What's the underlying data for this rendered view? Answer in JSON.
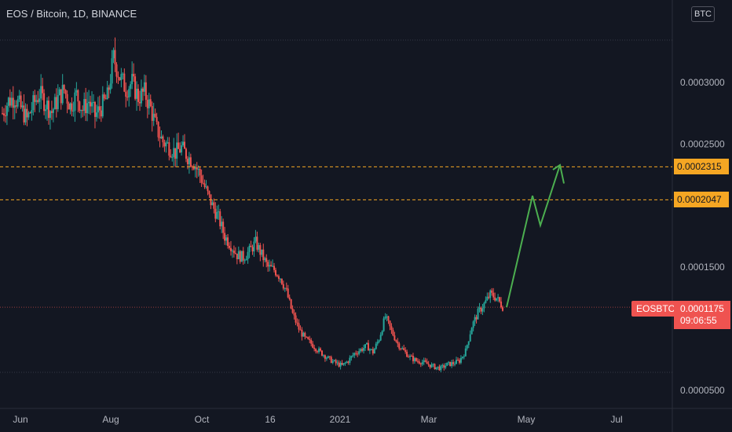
{
  "header": {
    "title": "EOS / Bitcoin, 1D, BINANCE",
    "currency_button": "BTC"
  },
  "chart_data": {
    "type": "candlestick",
    "title": "EOS / Bitcoin, 1D, BINANCE",
    "yaxis": {
      "ticks": [
        "0.0003000",
        "0.0002500",
        "0.0001500",
        "0.0000500"
      ],
      "tick_values": [
        0.0003,
        0.00025,
        0.00015,
        5e-05
      ],
      "range": [
        4e-05,
        0.00035
      ]
    },
    "xaxis": {
      "ticks": [
        "Jun",
        "Aug",
        "Oct",
        "16",
        "2021",
        "Mar",
        "May",
        "Jul"
      ]
    },
    "levels": [
      {
        "value": 0.0002315,
        "label": "0.0002315",
        "color": "#f5a623"
      },
      {
        "value": 0.0002047,
        "label": "0.0002047",
        "color": "#f5a623"
      }
    ],
    "current": {
      "symbol": "EOSBTC",
      "price": "0.0001175",
      "countdown": "09:06:55",
      "color": "#ef5350"
    },
    "price_path": [
      0.000275,
      0.000285,
      0.000288,
      0.000279,
      0.00027,
      0.000282,
      0.000291,
      0.000283,
      0.000276,
      0.000287,
      0.000294,
      0.000281,
      0.00029,
      0.000278,
      0.000285,
      0.000273,
      0.00028,
      0.000288,
      0.00032,
      0.000305,
      0.000295,
      0.0003,
      0.000288,
      0.000292,
      0.000279,
      0.000262,
      0.000252,
      0.000248,
      0.000243,
      0.000247,
      0.00024,
      0.000235,
      0.000225,
      0.000212,
      0.0002,
      0.00019,
      0.000175,
      0.000168,
      0.00016,
      0.000158,
      0.000163,
      0.00017,
      0.00016,
      0.00015,
      0.000148,
      0.000142,
      0.00013,
      0.000112,
      0.0001,
      9.2e-05,
      8.8e-05,
      8.3e-05,
      7.9e-05,
      7.5e-05,
      7.2e-05,
      7e-05,
      7.4e-05,
      8e-05,
      8.3e-05,
      8.6e-05,
      8.1e-05,
      9.2e-05,
      0.00011,
      9.8e-05,
      8.8e-05,
      8.2e-05,
      7.7e-05,
      7.4e-05,
      7.3e-05,
      7.1e-05,
      6.9e-05,
      6.8e-05,
      7.1e-05,
      7.2e-05,
      7.4e-05,
      8.2e-05,
      0.000102,
      0.000113,
      0.00012,
      0.000128,
      0.000125,
      0.000118
    ],
    "projection": [
      {
        "value": 0.0001175
      },
      {
        "value": 0.000208
      },
      {
        "value": 0.000184
      },
      {
        "value": 0.000233
      },
      {
        "value": 0.000218
      }
    ],
    "colors": {
      "background": "#131722",
      "up": "#26a69a",
      "down": "#ef5350",
      "projection": "#4caf50",
      "grid": "#2a2e39"
    }
  }
}
